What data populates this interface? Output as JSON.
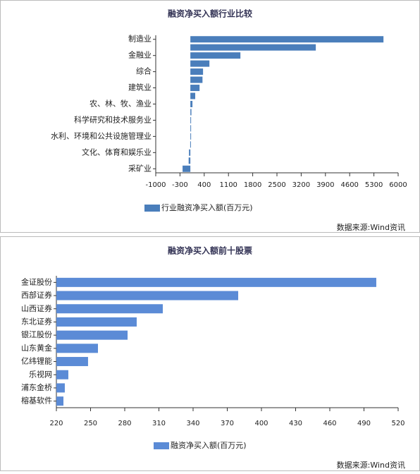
{
  "chart_data": [
    {
      "type": "bar",
      "orientation": "horizontal",
      "title": "融资净买入额行业比较",
      "categories": [
        "制造业",
        null,
        "金融业",
        null,
        "综合",
        null,
        "建筑业",
        null,
        "农、林、牧、渔业",
        null,
        "科学研究和技术服务业",
        null,
        "水利、环境和公共设施管理业",
        null,
        "文化、体育和娱乐业",
        null,
        "采矿业"
      ],
      "series": [
        {
          "name": "行业融资净买入额(百万元)",
          "color": "#4a7ebb",
          "values": [
            5576,
            3622,
            1445,
            550,
            366,
            350,
            265,
            140,
            60,
            30,
            15,
            10,
            5,
            -5,
            -40,
            -50,
            -225
          ]
        }
      ],
      "xlim": [
        -1000,
        6000
      ],
      "xticks": [
        -1000,
        -300,
        400,
        1100,
        1800,
        2500,
        3200,
        3900,
        4600,
        5300,
        6000
      ],
      "source": "数据来源:Wind资讯"
    },
    {
      "type": "bar",
      "orientation": "horizontal",
      "title": "融资净买入额前十股票",
      "categories": [
        "金证股份",
        "西部证券",
        "山西证券",
        "东北证券",
        "银江股份",
        "山东黄金",
        "亿纬锂能",
        "乐视网",
        "浦东金桥",
        "榕基软件"
      ],
      "series": [
        {
          "name": "融资净买入额(百万元)",
          "color": "#5b8bd6",
          "values": [
            500.8,
            379.6,
            313.4,
            290.5,
            282.5,
            256.5,
            247.8,
            230.5,
            227.4,
            226.2
          ]
        }
      ],
      "xlim": [
        220,
        520
      ],
      "xticks": [
        220,
        250,
        280,
        310,
        340,
        370,
        400,
        430,
        460,
        490,
        520
      ],
      "source": "数据来源:Wind资讯"
    }
  ]
}
